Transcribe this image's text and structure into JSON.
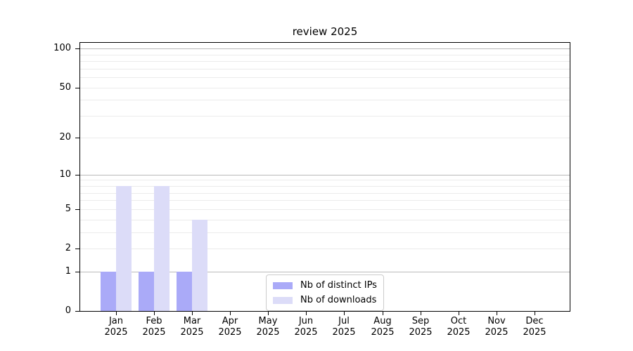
{
  "chart_data": {
    "type": "bar",
    "title": "review 2025",
    "categories": [
      "Jan 2025",
      "Feb 2025",
      "Mar 2025",
      "Apr 2025",
      "May 2025",
      "Jun 2025",
      "Jul 2025",
      "Aug 2025",
      "Sep 2025",
      "Oct 2025",
      "Nov 2025",
      "Dec 2025"
    ],
    "months": [
      "Jan",
      "Feb",
      "Mar",
      "Apr",
      "May",
      "Jun",
      "Jul",
      "Aug",
      "Sep",
      "Oct",
      "Nov",
      "Dec"
    ],
    "year": "2025",
    "series": [
      {
        "name": "Nb of distinct IPs",
        "color": "#aaaaf8",
        "values": [
          1,
          1,
          1,
          0,
          0,
          0,
          0,
          0,
          0,
          0,
          0,
          0
        ]
      },
      {
        "name": "Nb of downloads",
        "color": "#dcdcf8",
        "values": [
          8,
          8,
          4,
          0,
          0,
          0,
          0,
          0,
          0,
          0,
          0,
          0
        ]
      }
    ],
    "xlabel": "",
    "ylabel": "",
    "yscale": "log1p",
    "ylim": [
      0,
      112
    ],
    "yticks": [
      0,
      1,
      2,
      5,
      10,
      20,
      50,
      100
    ],
    "grid_major": [
      1,
      10,
      100
    ],
    "grid_minor": [
      2,
      3,
      4,
      5,
      6,
      7,
      8,
      9,
      20,
      30,
      40,
      50,
      60,
      70,
      80,
      90
    ],
    "legend_position": "lower center",
    "legend_labels": [
      "Nb of distinct IPs",
      "Nb of downloads"
    ]
  },
  "colors": {
    "bar_distinct_ips": "#aaaaf8",
    "bar_downloads": "#dcdcf8",
    "grid_major": "#b9b9b9",
    "grid_minor": "#ebebeb",
    "spine": "#000000",
    "legend_border": "#cccccc",
    "background": "#ffffff",
    "text": "#000000"
  }
}
